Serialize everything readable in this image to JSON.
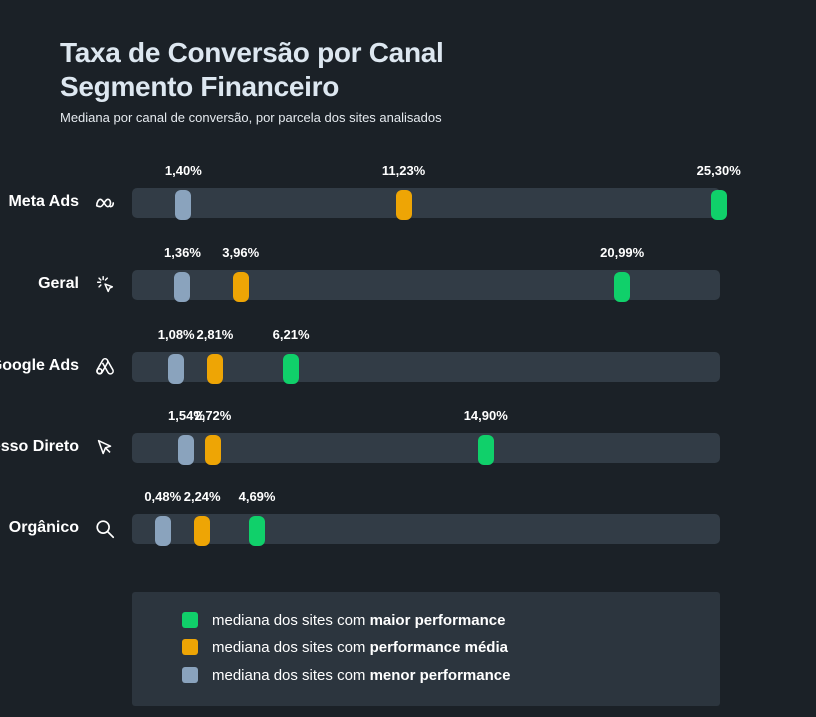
{
  "header": {
    "title_line1": "Taxa de Conversão por Canal",
    "title_line2": "Segmento Financeiro",
    "subtitle": "Mediana por canal de conversão, por parcela dos sites analisados"
  },
  "colors": {
    "background": "#1b2127",
    "track": "#323c46",
    "low": "#8aa3bd",
    "medium": "#eea505",
    "high": "#10d06a",
    "legend_bg": "#2c353e"
  },
  "chart_data": {
    "type": "dot-range",
    "unit": "%",
    "xlim": [
      0,
      26.5
    ],
    "series": [
      {
        "name": "mediana dos sites com menor performance",
        "key": "low"
      },
      {
        "name": "mediana dos sites com performance média",
        "key": "medium"
      },
      {
        "name": "mediana dos sites com maior performance",
        "key": "high"
      }
    ],
    "rows": [
      {
        "label": "Meta Ads",
        "icon": "meta-icon",
        "low": 1.4,
        "medium": 11.23,
        "high": 25.3,
        "low_label": "1,40%",
        "medium_label": "11,23%",
        "high_label": "25,30%"
      },
      {
        "label": "Geral",
        "icon": "sparkle-cursor-icon",
        "low": 1.36,
        "medium": 3.96,
        "high": 20.99,
        "low_label": "1,36%",
        "medium_label": "3,96%",
        "high_label": "20,99%"
      },
      {
        "label": "Google Ads",
        "icon": "google-ads-icon",
        "low": 1.08,
        "medium": 2.81,
        "high": 6.21,
        "low_label": "1,08%",
        "medium_label": "2,81%",
        "high_label": "6,21%"
      },
      {
        "label": "Acesso Direto",
        "icon": "cursor-icon",
        "low": 1.54,
        "medium": 2.72,
        "high": 14.9,
        "low_label": "1,54%",
        "medium_label": "2,72%",
        "high_label": "14,90%"
      },
      {
        "label": "Orgânico",
        "icon": "search-icon",
        "low": 0.48,
        "medium": 2.24,
        "high": 4.69,
        "low_label": "0,48%",
        "medium_label": "2,24%",
        "high_label": "4,69%"
      }
    ]
  },
  "legend": {
    "items": [
      {
        "key": "high",
        "prefix": "mediana dos sites com ",
        "bold": "maior performance"
      },
      {
        "key": "medium",
        "prefix": "mediana dos sites com ",
        "bold": "performance média"
      },
      {
        "key": "low",
        "prefix": "mediana dos sites com ",
        "bold": "menor performance"
      }
    ]
  }
}
